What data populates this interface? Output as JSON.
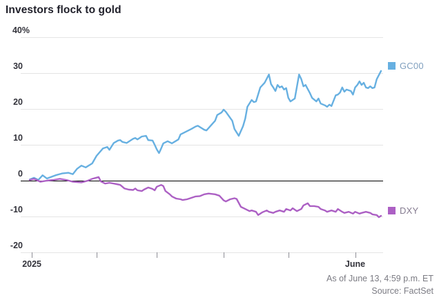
{
  "title": "Investors flock to gold",
  "footer": {
    "as_of": "As of June 13, 4:59 p.m. ET",
    "source": "Source: FactSet"
  },
  "legend": [
    {
      "label": "GC00",
      "swatch_color": "#67b0e1",
      "text_color": "#7f9fbe"
    },
    {
      "label": "DXY",
      "swatch_color": "#ac60c4",
      "text_color": "#857b90"
    }
  ],
  "colors": {
    "gc00_line": "#67b0e1",
    "dxy_line": "#ac60c4",
    "gridline": "#e4e4e4",
    "zero_line": "#000000",
    "tick": "#8e8e96",
    "axis_label": "#33333b",
    "title": "#21212b",
    "footer_text": "#7b7b83",
    "background": "#ffffff"
  },
  "chart_data": {
    "type": "line",
    "title": "Investors flock to gold",
    "x_axis": {
      "unit": "days since Jan 1, 2025",
      "range": [
        0,
        163
      ],
      "ticks": [
        {
          "day": 1,
          "label": "2025"
        },
        {
          "day": 31,
          "label": ""
        },
        {
          "day": 59,
          "label": ""
        },
        {
          "day": 90,
          "label": ""
        },
        {
          "day": 120,
          "label": ""
        },
        {
          "day": 151,
          "label": "June"
        }
      ]
    },
    "y_axis": {
      "unit": "% change",
      "range": [
        -20,
        40
      ],
      "grid": true,
      "ticks": [
        {
          "value": 40,
          "label": "40%"
        },
        {
          "value": 30,
          "label": "30"
        },
        {
          "value": 20,
          "label": "20"
        },
        {
          "value": 10,
          "label": "10"
        },
        {
          "value": 0,
          "label": "0"
        },
        {
          "value": -10,
          "label": "-10"
        },
        {
          "value": -20,
          "label": "-20"
        }
      ]
    },
    "legend_position": "right-of-line-ends",
    "series": [
      {
        "name": "GC00",
        "color": "#67b0e1",
        "points": [
          [
            0,
            0.3
          ],
          [
            2,
            0.8
          ],
          [
            4,
            0.2
          ],
          [
            6,
            1.5
          ],
          [
            8,
            0.6
          ],
          [
            12,
            1.5
          ],
          [
            15,
            2.0
          ],
          [
            18,
            2.2
          ],
          [
            20,
            1.8
          ],
          [
            22,
            3.3
          ],
          [
            24,
            4.2
          ],
          [
            26,
            3.7
          ],
          [
            29,
            4.8
          ],
          [
            31,
            6.9
          ],
          [
            34,
            9.0
          ],
          [
            36,
            9.4
          ],
          [
            37,
            8.6
          ],
          [
            39,
            10.5
          ],
          [
            41,
            11.2
          ],
          [
            42,
            11.3
          ],
          [
            43,
            10.8
          ],
          [
            45,
            10.5
          ],
          [
            48,
            11.7
          ],
          [
            49,
            11.9
          ],
          [
            50,
            11.5
          ],
          [
            52,
            12.3
          ],
          [
            54,
            12.5
          ],
          [
            55,
            11.3
          ],
          [
            57,
            11.2
          ],
          [
            58,
            10.0
          ],
          [
            59,
            8.7
          ],
          [
            60,
            7.7
          ],
          [
            61,
            9.0
          ],
          [
            62,
            10.4
          ],
          [
            64,
            11.0
          ],
          [
            66,
            10.4
          ],
          [
            69,
            11.5
          ],
          [
            70,
            12.9
          ],
          [
            72,
            13.5
          ],
          [
            73,
            13.8
          ],
          [
            75,
            14.4
          ],
          [
            77,
            15.1
          ],
          [
            78,
            15.3
          ],
          [
            81,
            14.2
          ],
          [
            82,
            14.0
          ],
          [
            86,
            16.7
          ],
          [
            87,
            18.3
          ],
          [
            89,
            19.0
          ],
          [
            90,
            19.8
          ],
          [
            91,
            19.2
          ],
          [
            94,
            16.7
          ],
          [
            95,
            14.4
          ],
          [
            97,
            12.5
          ],
          [
            99,
            15.2
          ],
          [
            100,
            17.3
          ],
          [
            101,
            20.6
          ],
          [
            103,
            22.5
          ],
          [
            104,
            21.9
          ],
          [
            105,
            22.1
          ],
          [
            107,
            26.0
          ],
          [
            109,
            27.3
          ],
          [
            111,
            29.6
          ],
          [
            112,
            26.9
          ],
          [
            113,
            26.0
          ],
          [
            114,
            25.0
          ],
          [
            115,
            26.7
          ],
          [
            116,
            26.0
          ],
          [
            117,
            26.3
          ],
          [
            118,
            25.4
          ],
          [
            119,
            25.8
          ],
          [
            120,
            23.1
          ],
          [
            121,
            22.1
          ],
          [
            123,
            22.9
          ],
          [
            125,
            29.6
          ],
          [
            126,
            28.3
          ],
          [
            127,
            26.3
          ],
          [
            128,
            26.7
          ],
          [
            130,
            24.4
          ],
          [
            131,
            23.1
          ],
          [
            133,
            22.1
          ],
          [
            134,
            22.9
          ],
          [
            135,
            21.5
          ],
          [
            137,
            21.0
          ],
          [
            138,
            20.6
          ],
          [
            139,
            21.2
          ],
          [
            140,
            20.8
          ],
          [
            142,
            23.8
          ],
          [
            143,
            24.0
          ],
          [
            144,
            24.6
          ],
          [
            145,
            26.0
          ],
          [
            146,
            24.8
          ],
          [
            147,
            25.4
          ],
          [
            149,
            25.0
          ],
          [
            150,
            24.0
          ],
          [
            151,
            26.0
          ],
          [
            152,
            26.7
          ],
          [
            153,
            27.7
          ],
          [
            154,
            26.7
          ],
          [
            155,
            27.3
          ],
          [
            156,
            26.0
          ],
          [
            157,
            25.8
          ],
          [
            158,
            26.3
          ],
          [
            159,
            25.8
          ],
          [
            160,
            26.0
          ],
          [
            161,
            28.3
          ],
          [
            163,
            30.6
          ]
        ]
      },
      {
        "name": "DXY",
        "color": "#ac60c4",
        "points": [
          [
            0,
            0.2
          ],
          [
            2,
            0.5
          ],
          [
            5,
            -0.3
          ],
          [
            8,
            0.0
          ],
          [
            11,
            0.2
          ],
          [
            14,
            0.5
          ],
          [
            17,
            0.2
          ],
          [
            20,
            -0.3
          ],
          [
            24,
            -0.5
          ],
          [
            27,
            0.0
          ],
          [
            29,
            0.5
          ],
          [
            32,
            1.0
          ],
          [
            33,
            -0.2
          ],
          [
            35,
            -0.8
          ],
          [
            37,
            -0.6
          ],
          [
            39,
            -0.8
          ],
          [
            42,
            -1.2
          ],
          [
            44,
            -2.2
          ],
          [
            46,
            -2.5
          ],
          [
            48,
            -2.6
          ],
          [
            49,
            -2.2
          ],
          [
            50,
            -2.7
          ],
          [
            52,
            -2.9
          ],
          [
            53,
            -2.5
          ],
          [
            55,
            -1.9
          ],
          [
            57,
            -2.3
          ],
          [
            58,
            -2.7
          ],
          [
            59,
            -1.7
          ],
          [
            61,
            -1.2
          ],
          [
            62,
            -1.5
          ],
          [
            63,
            -2.9
          ],
          [
            65,
            -3.8
          ],
          [
            66,
            -4.4
          ],
          [
            68,
            -5.0
          ],
          [
            70,
            -5.2
          ],
          [
            71,
            -5.4
          ],
          [
            73,
            -5.2
          ],
          [
            74,
            -5.0
          ],
          [
            77,
            -4.4
          ],
          [
            79,
            -4.3
          ],
          [
            81,
            -3.8
          ],
          [
            83,
            -3.6
          ],
          [
            86,
            -3.8
          ],
          [
            88,
            -4.2
          ],
          [
            90,
            -5.5
          ],
          [
            91,
            -5.8
          ],
          [
            93,
            -5.2
          ],
          [
            95,
            -4.9
          ],
          [
            96,
            -5.1
          ],
          [
            98,
            -7.3
          ],
          [
            100,
            -7.9
          ],
          [
            102,
            -8.5
          ],
          [
            103,
            -8.3
          ],
          [
            105,
            -8.7
          ],
          [
            106,
            -9.6
          ],
          [
            108,
            -8.8
          ],
          [
            110,
            -8.3
          ],
          [
            111,
            -8.7
          ],
          [
            113,
            -9.0
          ],
          [
            114,
            -8.7
          ],
          [
            116,
            -8.3
          ],
          [
            118,
            -8.7
          ],
          [
            119,
            -7.9
          ],
          [
            121,
            -8.3
          ],
          [
            122,
            -7.7
          ],
          [
            124,
            -8.5
          ],
          [
            126,
            -7.9
          ],
          [
            127,
            -6.9
          ],
          [
            129,
            -6.3
          ],
          [
            130,
            -7.1
          ],
          [
            132,
            -7.1
          ],
          [
            134,
            -7.3
          ],
          [
            135,
            -7.9
          ],
          [
            137,
            -8.3
          ],
          [
            138,
            -8.7
          ],
          [
            140,
            -8.3
          ],
          [
            142,
            -8.7
          ],
          [
            143,
            -7.9
          ],
          [
            145,
            -8.7
          ],
          [
            146,
            -9.0
          ],
          [
            148,
            -8.7
          ],
          [
            150,
            -9.2
          ],
          [
            151,
            -8.7
          ],
          [
            153,
            -9.2
          ],
          [
            154,
            -9.0
          ],
          [
            156,
            -8.7
          ],
          [
            158,
            -9.0
          ],
          [
            159,
            -9.4
          ],
          [
            161,
            -9.6
          ],
          [
            162,
            -10.2
          ],
          [
            163,
            -9.8
          ]
        ]
      }
    ]
  }
}
